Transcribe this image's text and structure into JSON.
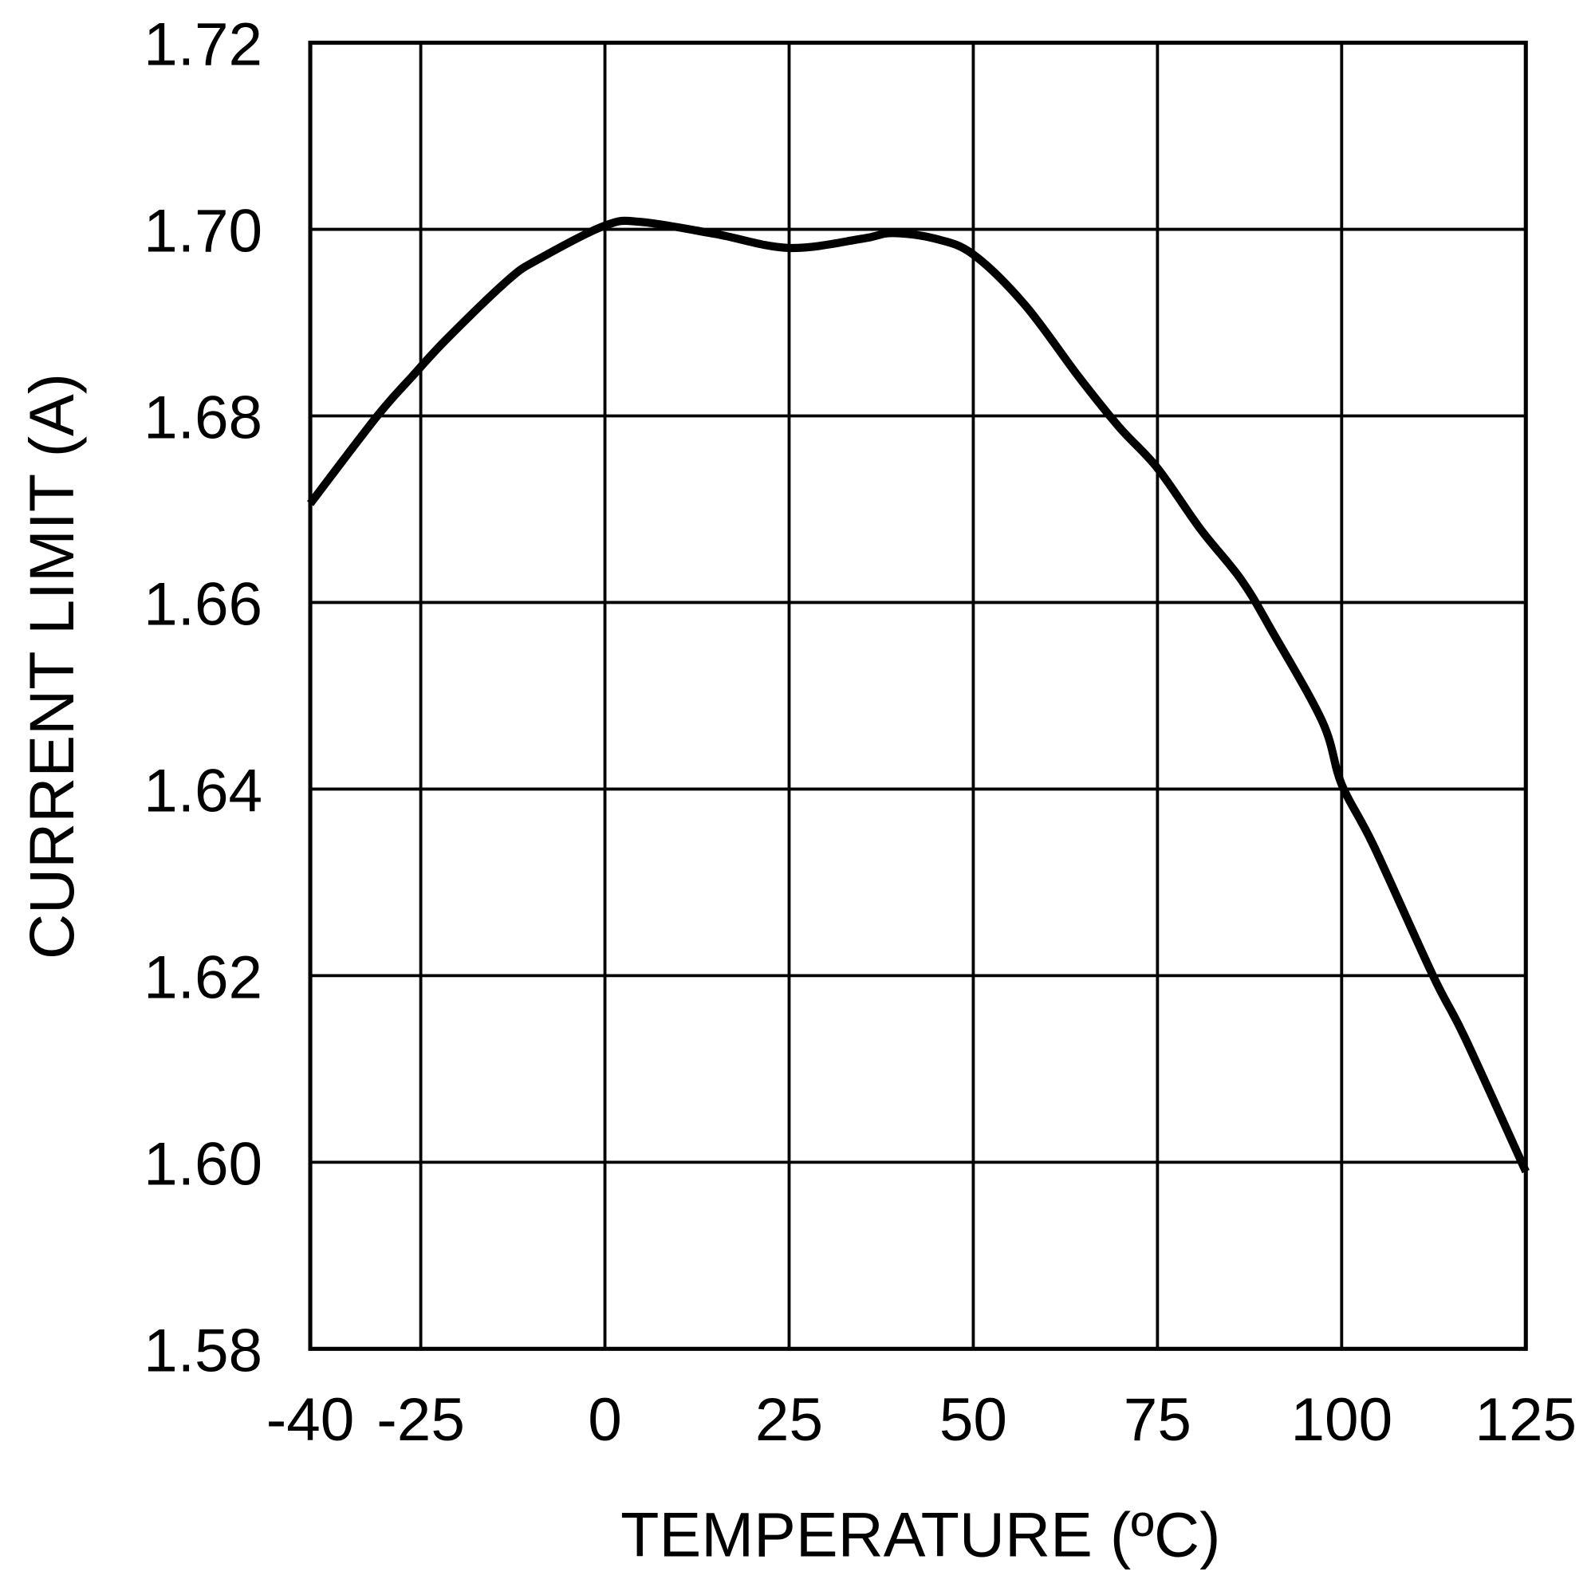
{
  "chart_data": {
    "type": "line",
    "title": "",
    "xlabel": "TEMPERATURE (ºC)",
    "ylabel": "CURRENT LIMIT (A)",
    "xlim": [
      -40,
      125
    ],
    "ylim": [
      1.58,
      1.72
    ],
    "xticks": [
      -40,
      -25,
      0,
      25,
      50,
      75,
      100,
      125
    ],
    "xtick_labels": [
      "-40",
      "-25",
      "0",
      "25",
      "50",
      "75",
      "100",
      "125"
    ],
    "yticks": [
      1.58,
      1.6,
      1.62,
      1.64,
      1.66,
      1.68,
      1.7,
      1.72
    ],
    "ytick_labels": [
      "1.58",
      "1.60",
      "1.62",
      "1.64",
      "1.66",
      "1.68",
      "1.70",
      "1.72"
    ],
    "grid": true,
    "line_color": "#000000",
    "series": [
      {
        "x": [
          -40,
          -31,
          -26.2,
          -21.4,
          -13.1,
          -9,
          0,
          4.8,
          15,
          25,
          35,
          39,
          44.8,
          50,
          57,
          64.3,
          69.8,
          75,
          80.8,
          86.4,
          90.5,
          97.4,
          100,
          104.3,
          112.4,
          116.7,
          125
        ],
        "y": [
          1.6706,
          1.6799,
          1.6842,
          1.6883,
          1.6946,
          1.6968,
          1.7004,
          1.7008,
          1.6995,
          1.698,
          1.699,
          1.6996,
          1.699,
          1.6973,
          1.6919,
          1.6842,
          1.6788,
          1.6744,
          1.6679,
          1.6624,
          1.657,
          1.6472,
          1.6405,
          1.634,
          1.62,
          1.6134,
          1.599
        ]
      }
    ]
  }
}
